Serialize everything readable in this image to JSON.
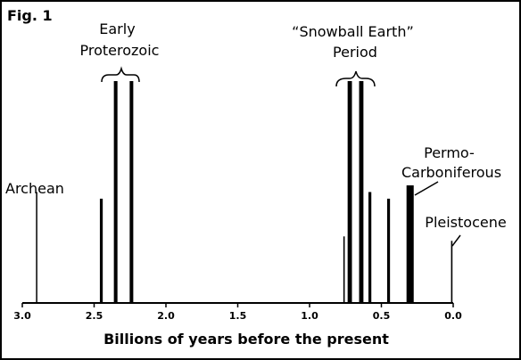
{
  "figure_label": "Fig. 1",
  "chart_data": {
    "type": "bar",
    "title": "",
    "xlabel": "Billions of years before the present",
    "ylabel": "",
    "xlim": [
      3.0,
      0.0
    ],
    "x_reversed": true,
    "grid": false,
    "x_ticks": [
      3.0,
      2.5,
      2.0,
      1.5,
      1.0,
      0.5,
      0.0
    ],
    "x_tick_labels": [
      "3.0",
      "2.5",
      "2.0",
      "1.5",
      "1.0",
      "0.5",
      "0.0"
    ],
    "bars": [
      {
        "x": 2.9,
        "value": 0.5,
        "width": 0.008
      },
      {
        "x": 2.45,
        "value": 0.47,
        "width": 0.02
      },
      {
        "x": 2.35,
        "value": 1.0,
        "width": 0.025
      },
      {
        "x": 2.24,
        "value": 1.0,
        "width": 0.025
      },
      {
        "x": 0.76,
        "value": 0.3,
        "width": 0.01
      },
      {
        "x": 0.72,
        "value": 1.0,
        "width": 0.03
      },
      {
        "x": 0.64,
        "value": 1.0,
        "width": 0.03
      },
      {
        "x": 0.58,
        "value": 0.5,
        "width": 0.02
      },
      {
        "x": 0.45,
        "value": 0.47,
        "width": 0.02
      },
      {
        "x": 0.3,
        "value": 0.53,
        "width": 0.05
      },
      {
        "x": 0.01,
        "value": 0.28,
        "width": 0.01
      }
    ],
    "annotations": [
      {
        "id": "archean",
        "lines": [
          "Archean"
        ]
      },
      {
        "id": "early-proterozoic",
        "lines": [
          "Early",
          "Proterozoic"
        ]
      },
      {
        "id": "snowball",
        "lines": [
          "“Snowball Earth”",
          "Period"
        ]
      },
      {
        "id": "permo",
        "lines": [
          "Permo-",
          "Carboniferous"
        ]
      },
      {
        "id": "pleistocene",
        "lines": [
          "Pleistocene"
        ]
      }
    ]
  }
}
